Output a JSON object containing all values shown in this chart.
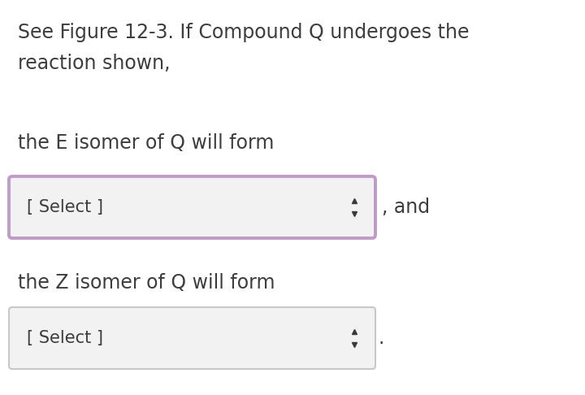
{
  "background_color": "#ffffff",
  "text_color": "#3d3d3d",
  "header_text_line1": "See Figure 12-3. If Compound Q undergoes the",
  "header_text_line2": "reaction shown,",
  "label1": "the E isomer of Q will form",
  "label2": "the Z isomer of Q will form",
  "select_text": "[ Select ]",
  "and_text": ", and",
  "period_text": ".",
  "box1_border_color": "#c09ac8",
  "box2_border_color": "#c8c8c8",
  "box_fill_color": "#f2f2f2",
  "font_size_header": 17,
  "font_size_label": 17,
  "font_size_select": 15,
  "font_size_and": 17
}
